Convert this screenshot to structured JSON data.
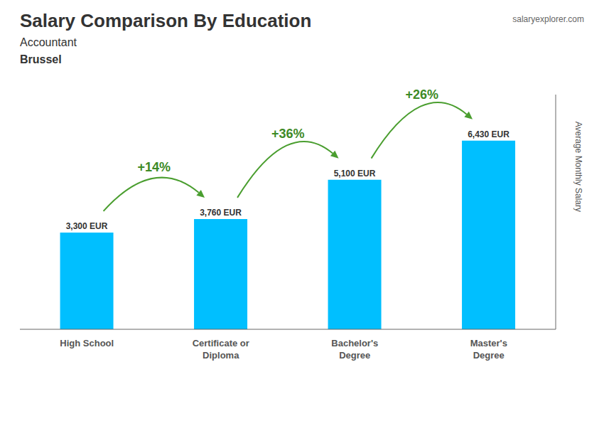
{
  "chart_data": {
    "type": "bar",
    "title": "Salary Comparison By Education",
    "subtitle": [
      "Accountant",
      "Brussel"
    ],
    "ylabel": "Average Monthly Salary",
    "categories": [
      "High School",
      "Certificate or\nDiploma",
      "Bachelor's\nDegree",
      "Master's\nDegree"
    ],
    "values": [
      3300,
      3760,
      5100,
      6430
    ],
    "value_labels": [
      "3,300 EUR",
      "3,760 EUR",
      "5,100 EUR",
      "6,430 EUR"
    ],
    "data_labels": true,
    "annotations": [
      "+14%",
      "+36%",
      "+26%"
    ],
    "watermark": "salaryexplorer.com",
    "color": "#00BFFF",
    "ylim": [
      0,
      8000
    ],
    "tick_labels": "x",
    "grid": false
  }
}
